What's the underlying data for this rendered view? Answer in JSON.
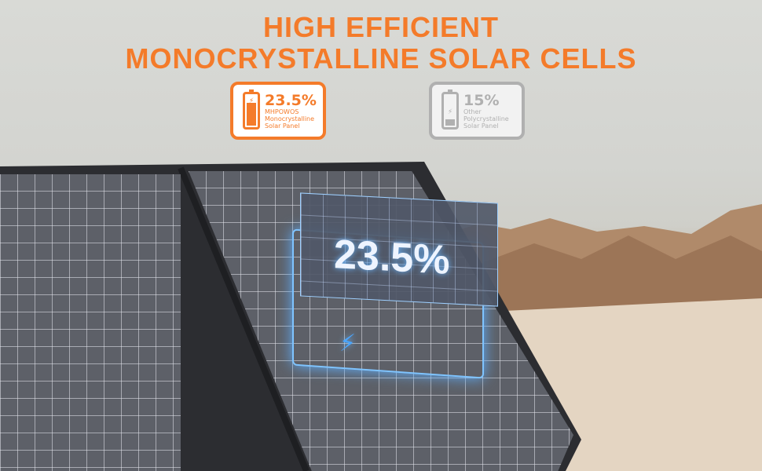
{
  "headline": {
    "line1": "HIGH EFFICIENT",
    "line2": "MONOCRYSTALLINE SOLAR CELLS"
  },
  "badges": [
    {
      "percent": "23.5%",
      "brand": "MHPOWOS",
      "line2": "Monocrystalline",
      "line3": "Solar Panel",
      "fill_level": 0.75,
      "color": "#f47b2a",
      "icon": "battery-charging-icon"
    },
    {
      "percent": "15%",
      "brand": "Other",
      "line2": "Polycrystalline",
      "line3": "Solar Panel",
      "fill_level": 0.2,
      "color": "#b0b0b0",
      "icon": "battery-low-icon"
    }
  ],
  "overlay": {
    "percent": "23.5%",
    "icon": "lightning-bolt-icon",
    "glow_color": "#5fb0ff"
  }
}
